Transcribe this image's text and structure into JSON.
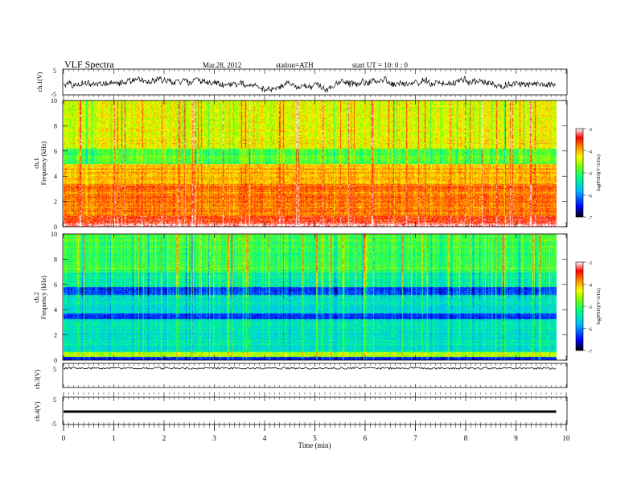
{
  "header": {
    "title": "VLF  Spectra",
    "date": "Mar.28, 2012",
    "station": "station=ATH",
    "start": "start  UT =    10: 0  : 0"
  },
  "chart_data": {
    "type": "heatmap",
    "x_axis": {
      "label": "Time  (min)",
      "range": [
        0,
        10
      ],
      "ticks": [
        "0",
        "1",
        "2",
        "3",
        "4",
        "5",
        "6",
        "7",
        "8",
        "9",
        "10"
      ]
    },
    "waveform_panels": [
      {
        "ylabel": "ch.1(V)",
        "yticks": [
          "5",
          "-5"
        ],
        "trace": "noisy waveform",
        "range": [
          -5,
          5
        ]
      },
      {
        "ylabel": "ch.3(V)",
        "yticks": [
          "5"
        ],
        "trace": "flat near 5"
      },
      {
        "ylabel": "ch.4(V)",
        "yticks": [
          "5",
          "-5"
        ],
        "trace": "flat near 0"
      }
    ],
    "spectrogram_panels": [
      {
        "ylabel": "ch.1\nFrequency  (kHz)",
        "yticks": [
          "10",
          "8",
          "6",
          "4",
          "2",
          "0"
        ],
        "yrange": [
          0,
          10
        ],
        "colorbar": {
          "label": "log(PSD)(V^2/Hz)",
          "ticks": [
            "-3",
            "-4",
            "-5",
            "-6",
            "-7"
          ]
        },
        "dominant": "yellow/red broadband, green band near 5-6 kHz, red low frequencies"
      },
      {
        "ylabel": "ch.2\nFrequency  (kHz)",
        "yticks": [
          "10",
          "8",
          "6",
          "4",
          "2",
          "0"
        ],
        "yrange": [
          0,
          10
        ],
        "colorbar": {
          "label": "log(PSD)(V^2/Hz)",
          "ticks": [
            "-3",
            "-4",
            "-5",
            "-6",
            "-7"
          ]
        },
        "dominant": "green/cyan broadband, blue bands near 3.5 and 5.5 kHz"
      }
    ],
    "colormap": [
      "#000080",
      "#0000ff",
      "#00c0ff",
      "#00ff80",
      "#80ff00",
      "#ffff00",
      "#ff8000",
      "#ff0000",
      "#ffffff"
    ],
    "data_end_min": 9.8
  }
}
